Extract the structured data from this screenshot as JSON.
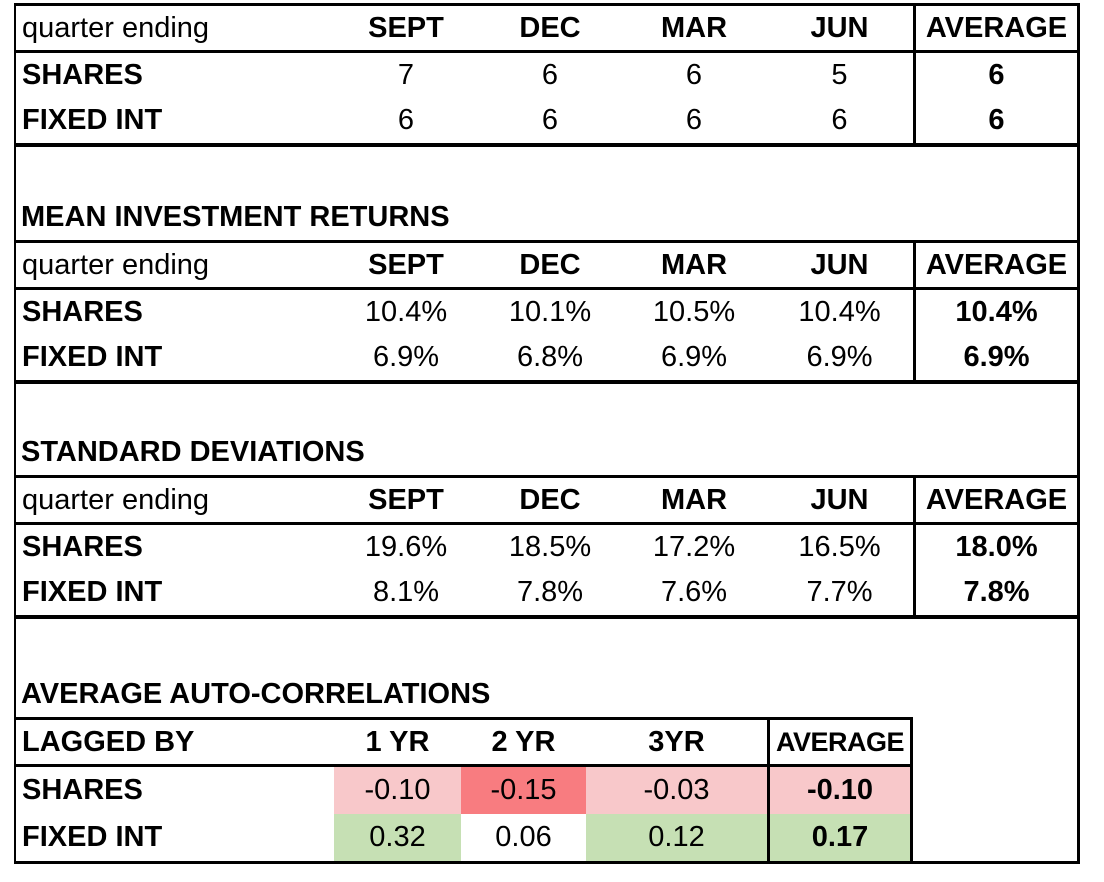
{
  "titles": {
    "returns": "MEAN INVESTMENT RETURNS",
    "stdev": "STANDARD DEVIATIONS",
    "autocorr": "AVERAGE AUTO-CORRELATIONS"
  },
  "counts_table": {
    "header": [
      "quarter ending",
      "SEPT",
      "DEC",
      "MAR",
      "JUN",
      "AVERAGE"
    ],
    "rows": [
      {
        "label": "SHARES",
        "values": [
          "7",
          "6",
          "6",
          "5"
        ],
        "average": "6"
      },
      {
        "label": "FIXED INT",
        "values": [
          "6",
          "6",
          "6",
          "6"
        ],
        "average": "6"
      }
    ]
  },
  "returns_table": {
    "header": [
      "quarter ending",
      "SEPT",
      "DEC",
      "MAR",
      "JUN",
      "AVERAGE"
    ],
    "rows": [
      {
        "label": "SHARES",
        "values": [
          "10.4%",
          "10.1%",
          "10.5%",
          "10.4%"
        ],
        "average": "10.4%"
      },
      {
        "label": "FIXED INT",
        "values": [
          "6.9%",
          "6.8%",
          "6.9%",
          "6.9%"
        ],
        "average": "6.9%"
      }
    ]
  },
  "stdev_table": {
    "header": [
      "quarter ending",
      "SEPT",
      "DEC",
      "MAR",
      "JUN",
      "AVERAGE"
    ],
    "rows": [
      {
        "label": "SHARES",
        "values": [
          "19.6%",
          "18.5%",
          "17.2%",
          "16.5%"
        ],
        "average": "18.0%"
      },
      {
        "label": "FIXED INT",
        "values": [
          "8.1%",
          "7.8%",
          "7.6%",
          "7.7%"
        ],
        "average": "7.8%"
      }
    ]
  },
  "autocorr_table": {
    "header": [
      "LAGGED BY",
      "1 YR",
      "2 YR",
      "3YR",
      "AVERAGE"
    ],
    "rows": [
      {
        "label": "SHARES",
        "values": [
          "-0.10",
          "-0.15",
          "-0.03"
        ],
        "average": "-0.10",
        "colors": [
          "#F8C8CA",
          "#F87C80",
          "#F8C8CA"
        ],
        "average_color": "#F8C8CA"
      },
      {
        "label": "FIXED INT",
        "values": [
          "0.32",
          "0.06",
          "0.12"
        ],
        "average": "0.17",
        "colors": [
          "#C6E0B4",
          "#FFFFFF",
          "#C6E0B4"
        ],
        "average_color": "#C6E0B4"
      }
    ]
  },
  "format_colors": {
    "negative_light": "#F8C8CA",
    "negative_strong": "#F87C80",
    "positive_green": "#C6E0B4",
    "neutral": "#FFFFFF"
  }
}
